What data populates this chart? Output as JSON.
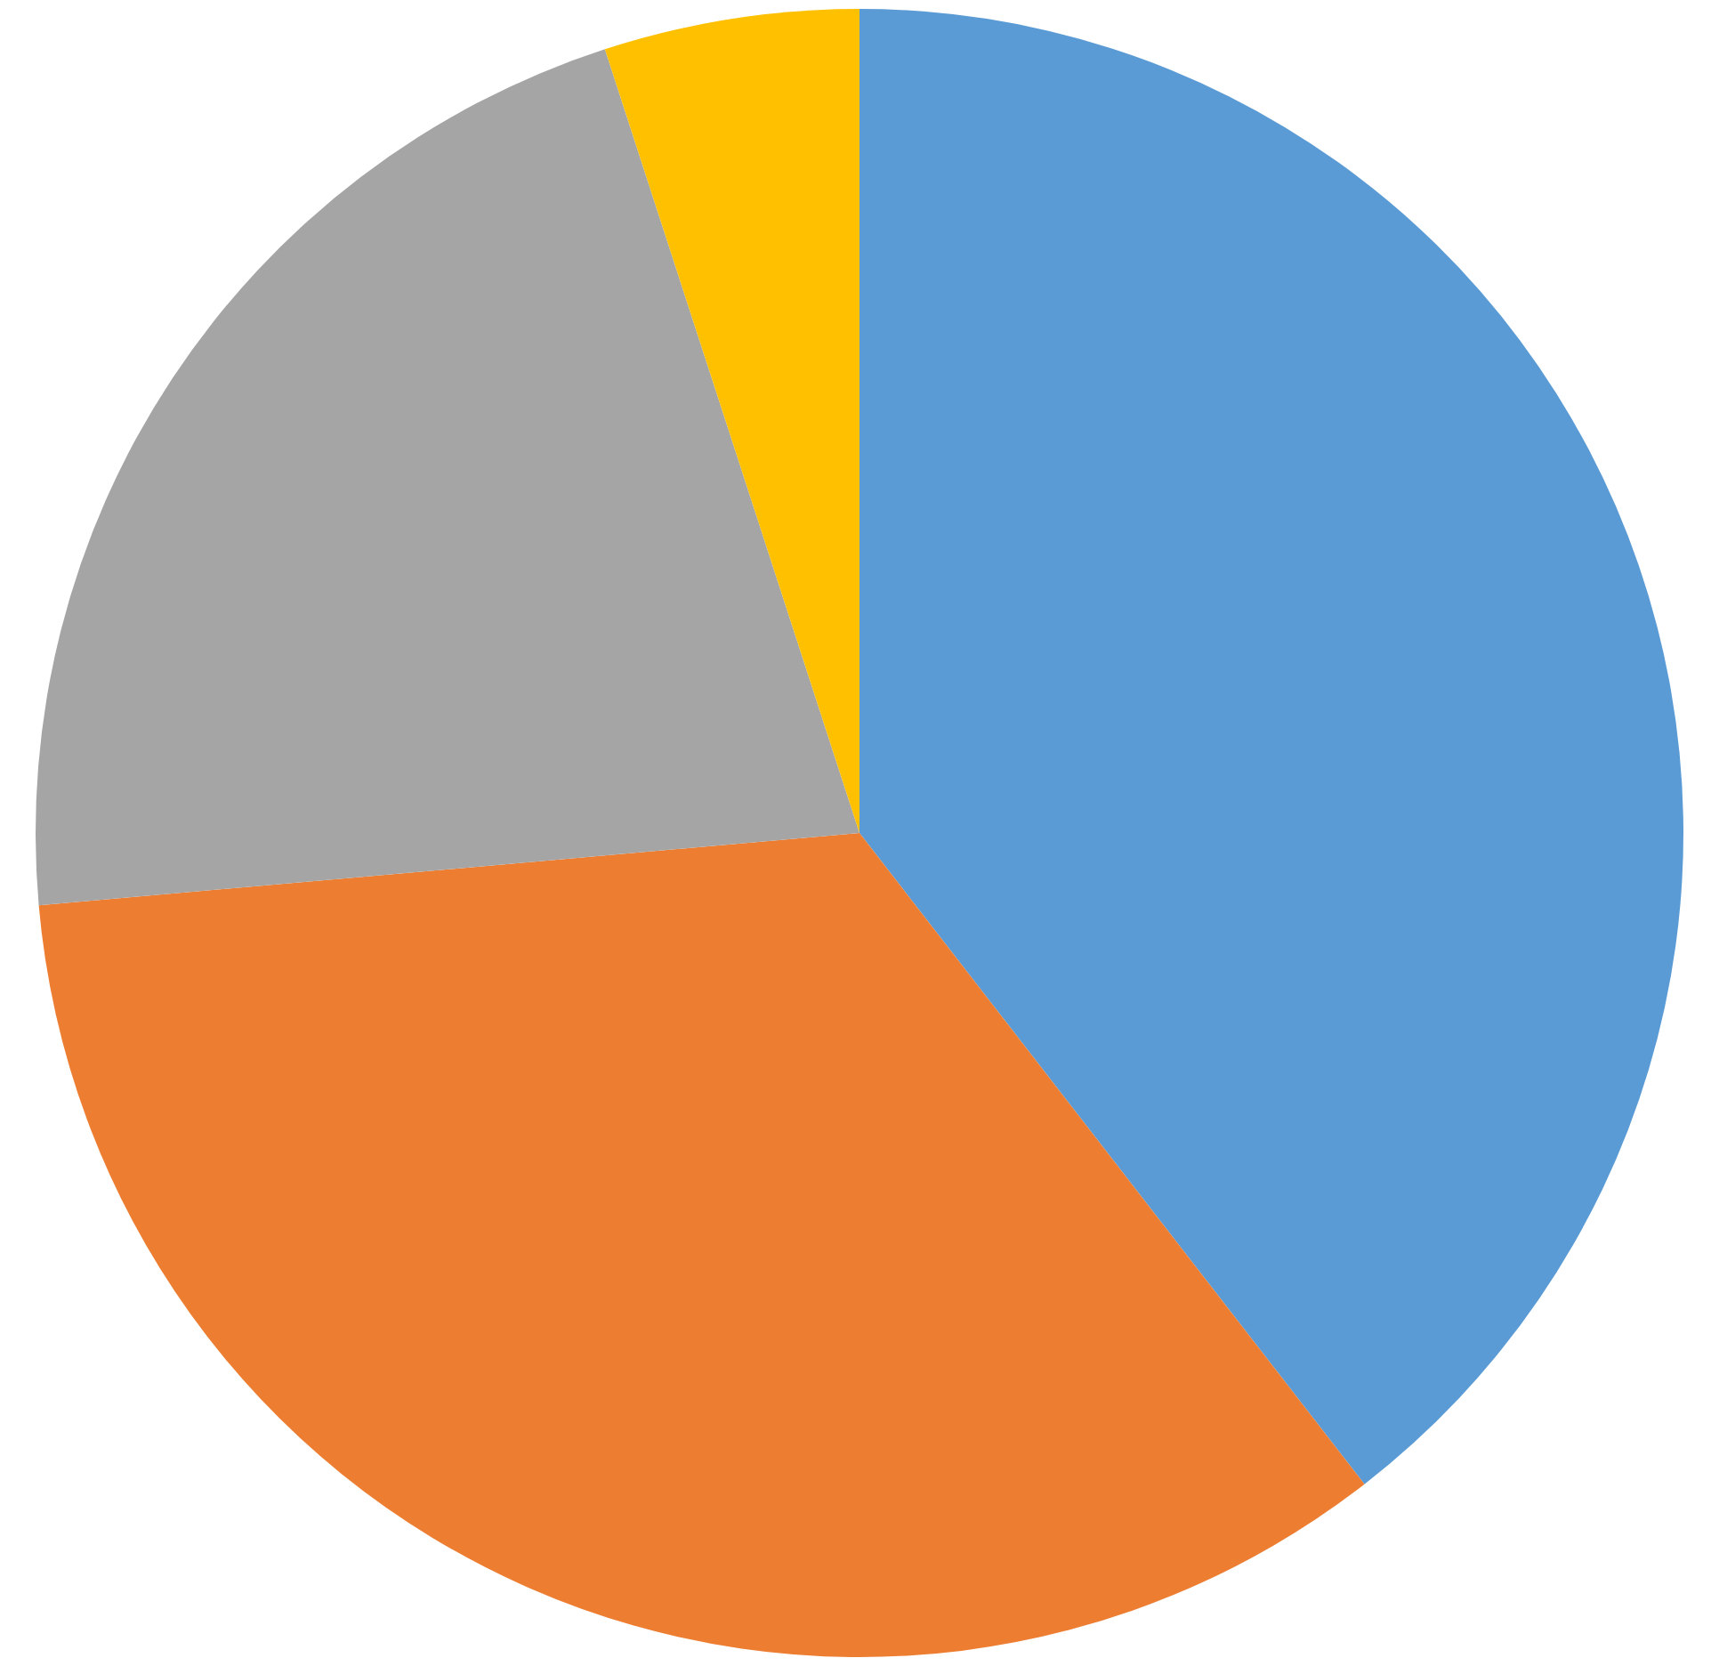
{
  "chart_data": {
    "type": "pie",
    "categories": [
      null,
      null,
      null,
      null
    ],
    "values": [
      39.5,
      34.1,
      21.4,
      5.0
    ],
    "colors": [
      "#5b9bd5",
      "#ed7d31",
      "#a5a5a5",
      "#ffc000"
    ],
    "legend": false
  }
}
